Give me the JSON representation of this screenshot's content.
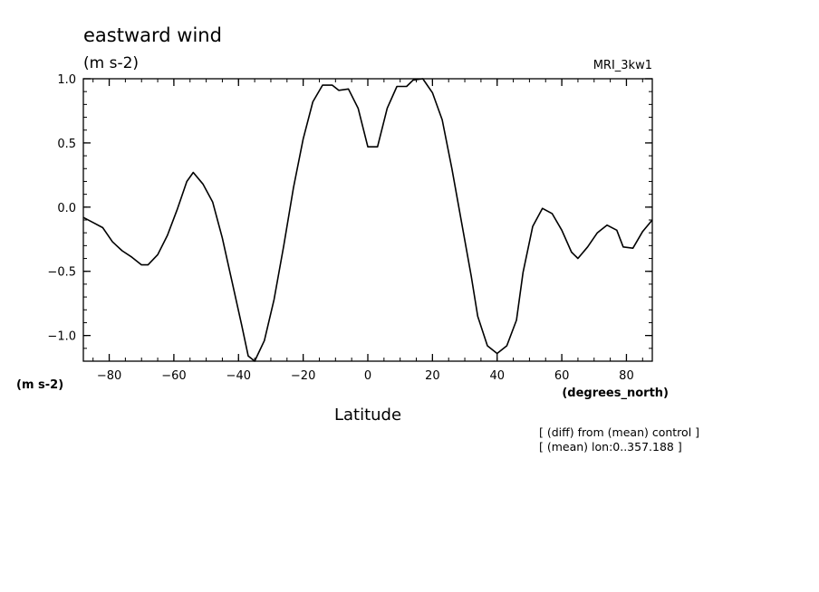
{
  "chart_data": {
    "type": "line",
    "title": "eastward wind",
    "units": "(m s-2)",
    "model": "MRI_3kw1",
    "ylabel": "(m s-2)",
    "xlabel": "Latitude",
    "xunits": "(degrees_north)",
    "xlim": [
      -88,
      88
    ],
    "ylim": [
      -1.2,
      1.0
    ],
    "xticks": [
      -80,
      -60,
      -40,
      -20,
      0,
      20,
      40,
      60,
      80
    ],
    "xtick_labels": [
      "−80",
      "−60",
      "−40",
      "−20",
      "0",
      "20",
      "40",
      "60",
      "80"
    ],
    "yticks": [
      1.0,
      0.5,
      0.0,
      -0.5,
      -1.0
    ],
    "ytick_labels": [
      "1.0",
      "0.5",
      "0.0",
      "−0.5",
      "−1.0"
    ],
    "notes": [
      "[ (diff) from (mean) control ]",
      "[ (mean) lon:0..357.188 ]"
    ],
    "series": [
      {
        "x": [
          -88,
          -85,
          -82,
          -79,
          -76,
          -73,
          -70,
          -68,
          -65,
          -62,
          -59,
          -56,
          -54,
          -51,
          -48,
          -45,
          -42,
          -39,
          -37,
          -35,
          -32,
          -29,
          -26,
          -23,
          -20,
          -17,
          -14,
          -11,
          -9,
          -6,
          -3,
          0,
          3,
          6,
          9,
          12,
          14,
          17,
          20,
          23,
          26,
          29,
          32,
          34,
          37,
          40,
          43,
          46,
          48,
          51,
          54,
          57,
          60,
          63,
          65,
          68,
          71,
          74,
          77,
          79,
          82,
          85,
          88
        ],
        "y": [
          -0.08,
          -0.12,
          -0.16,
          -0.27,
          -0.34,
          -0.39,
          -0.45,
          -0.45,
          -0.37,
          -0.22,
          -0.02,
          0.2,
          0.27,
          0.18,
          0.04,
          -0.24,
          -0.58,
          -0.92,
          -1.16,
          -1.2,
          -1.04,
          -0.72,
          -0.3,
          0.15,
          0.53,
          0.82,
          0.95,
          0.95,
          0.91,
          0.92,
          0.77,
          0.47,
          0.47,
          0.77,
          0.94,
          0.94,
          0.99,
          1.0,
          0.89,
          0.68,
          0.3,
          -0.12,
          -0.54,
          -0.85,
          -1.08,
          -1.14,
          -1.08,
          -0.88,
          -0.51,
          -0.15,
          -0.01,
          -0.05,
          -0.18,
          -0.35,
          -0.4,
          -0.31,
          -0.2,
          -0.14,
          -0.18,
          -0.31,
          -0.32,
          -0.19,
          -0.1
        ]
      }
    ]
  }
}
